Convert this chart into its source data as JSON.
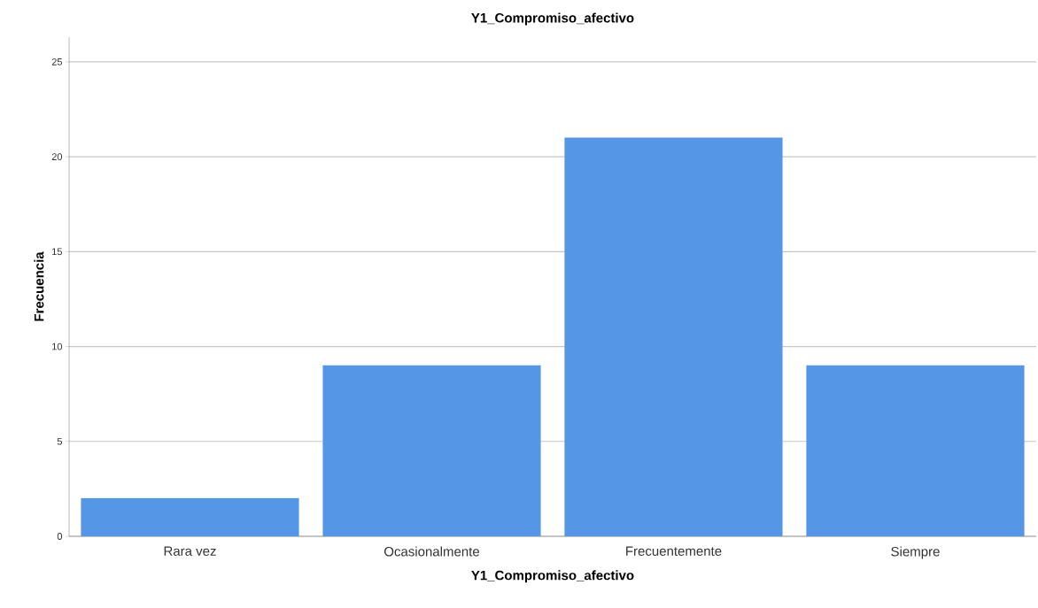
{
  "chart_data": {
    "type": "bar",
    "title": "Y1_Compromiso_afectivo",
    "xlabel": "Y1_Compromiso_afectivo",
    "ylabel": "Frecuencia",
    "categories": [
      "Rara vez",
      "Ocasionalmente",
      "Frecuentemente",
      "Siempre"
    ],
    "values": [
      2,
      9,
      21,
      9
    ],
    "color": "#5596e6",
    "ylim": [
      0,
      26.3
    ],
    "yticks": [
      0,
      5,
      10,
      15,
      20,
      25
    ],
    "grid": "y"
  }
}
